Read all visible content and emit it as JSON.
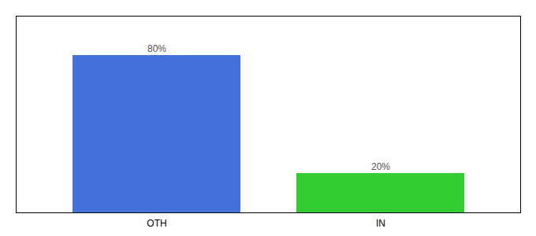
{
  "chart_data": {
    "type": "bar",
    "categories": [
      "OTH",
      "IN"
    ],
    "values": [
      80,
      20
    ],
    "value_labels": [
      "80%",
      "20%"
    ],
    "colors": [
      "#4472db",
      "#33cc33"
    ],
    "ylim": [
      0,
      100
    ],
    "data_labels": true,
    "tick_labels": "x"
  }
}
